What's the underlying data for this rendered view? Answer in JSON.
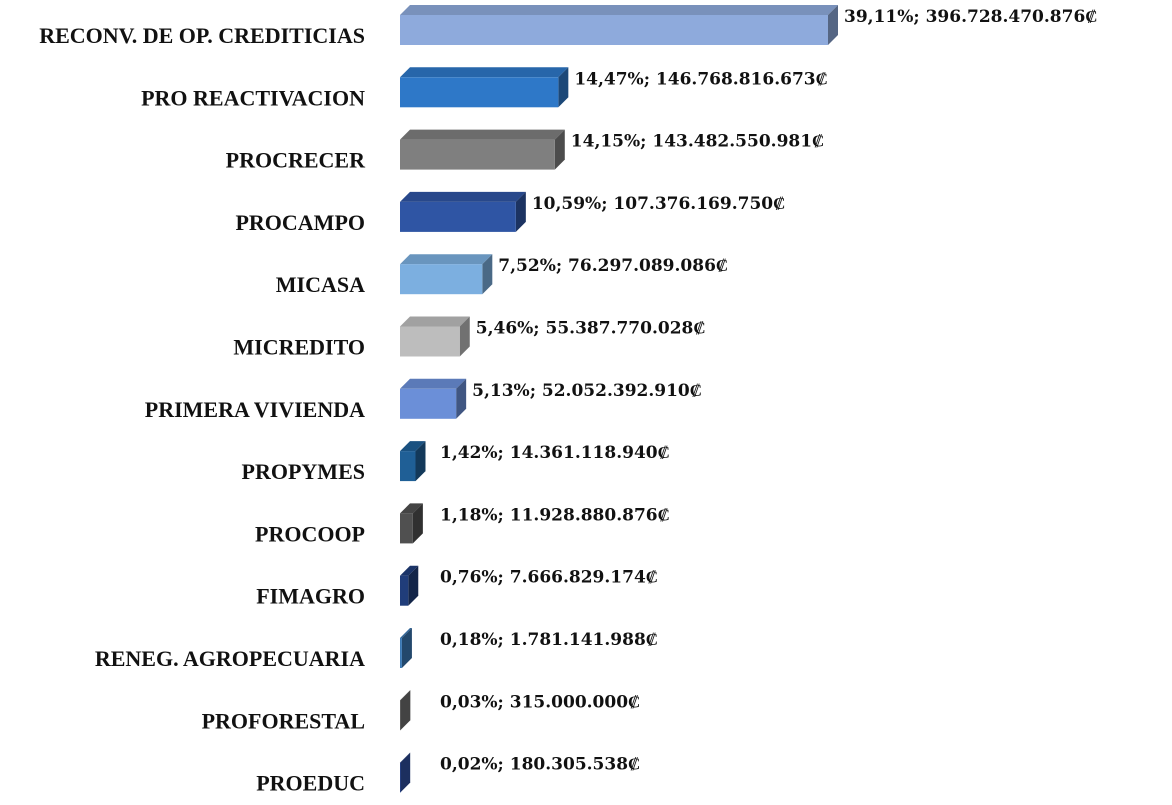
{
  "chart_data": {
    "type": "bar3d",
    "categories": [
      "RECONV. DE OP. CREDITICIAS",
      "PRO REACTIVACION",
      "PROCRECER",
      "PROCAMPO",
      "MICASA",
      "MICREDITO",
      "PRIMERA VIVIENDA",
      "PROPYMES",
      "PROCOOP",
      "FIMAGRO",
      "RENEG. AGROPECUARIA",
      "PROFORESTAL",
      "PROEDUC"
    ],
    "values": [
      396728470876,
      146768816673,
      143482550981,
      107376169750,
      76297089086,
      55387770028,
      52052392910,
      14361118940,
      11928880876,
      7666829174,
      1781141988,
      315000000,
      180305538
    ],
    "value_labels": [
      "39,11%; 396.728.470.876₡",
      "14,47%; 146.768.816.673₡",
      "14,15%; 143.482.550.981₡",
      "10,59%; 107.376.169.750₡",
      "7,52%; 76.297.089.086₡",
      "5,46%; 55.387.770.028₡",
      "5,13%; 52.052.392.910₡",
      "1,42%; 14.361.118.940₡",
      "1,18%; 11.928.880.876₡",
      "0,76%; 7.666.829.174₡",
      "0,18%; 1.781.141.988₡",
      "0,03%; 315.000.000₡",
      "0,02%; 180.305.538₡"
    ],
    "colors": [
      "#8eaadc",
      "#2e78c8",
      "#7f7f7f",
      "#2f55a4",
      "#7cafe0",
      "#bdbdbd",
      "#6b8fd8",
      "#1f5f96",
      "#505050",
      "#203d7a",
      "#3a78b4",
      "#707070",
      "#2e4e9e"
    ]
  }
}
